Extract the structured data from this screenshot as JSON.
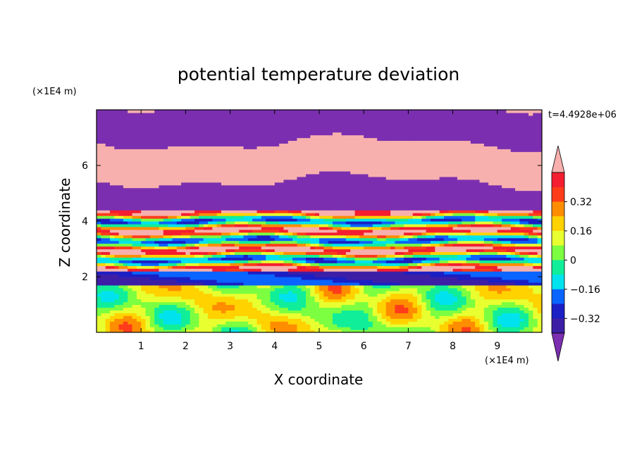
{
  "chart_data": {
    "type": "heatmap",
    "title": "potential temperature deviation",
    "xlabel": "X coordinate",
    "ylabel": "Z coordinate",
    "x_unit": "(×1E4 m)",
    "y_unit": "(×1E4 m)",
    "time_label": "t=4.4928e+06",
    "xlim": [
      0,
      10
    ],
    "ylim": [
      0,
      8
    ],
    "x_ticks": [
      "1",
      "2",
      "3",
      "4",
      "5",
      "6",
      "7",
      "8",
      "9"
    ],
    "y_ticks": [
      "2",
      "4",
      "6"
    ],
    "colorbar": {
      "levels": [
        -0.48,
        -0.4,
        -0.32,
        -0.24,
        -0.16,
        -0.08,
        0,
        0.08,
        0.16,
        0.24,
        0.32,
        0.4,
        0.48
      ],
      "labels": [
        "0.32",
        "0.16",
        "0",
        "−0.16",
        "−0.32"
      ],
      "label_values": [
        0.32,
        0.16,
        0,
        -0.16,
        -0.32
      ],
      "colors": [
        "#7b2fb0",
        "#3d1fa6",
        "#1b1fc4",
        "#0a64ff",
        "#00e3ee",
        "#10ee9a",
        "#7cff40",
        "#e8ff30",
        "#ffd200",
        "#ff8d00",
        "#ff3c1a",
        "#f41e30",
        "#f7b0ad"
      ]
    },
    "features": [
      {
        "z": [
          0,
          1.7
        ],
        "description_level": 0.02
      },
      {
        "z": [
          1.7,
          2.2
        ],
        "description_level": -0.4
      },
      {
        "z": [
          2.2,
          4.4
        ],
        "description_level": 0.1
      },
      {
        "z": [
          4.4,
          8
        ],
        "description_level": 0.5
      }
    ]
  }
}
